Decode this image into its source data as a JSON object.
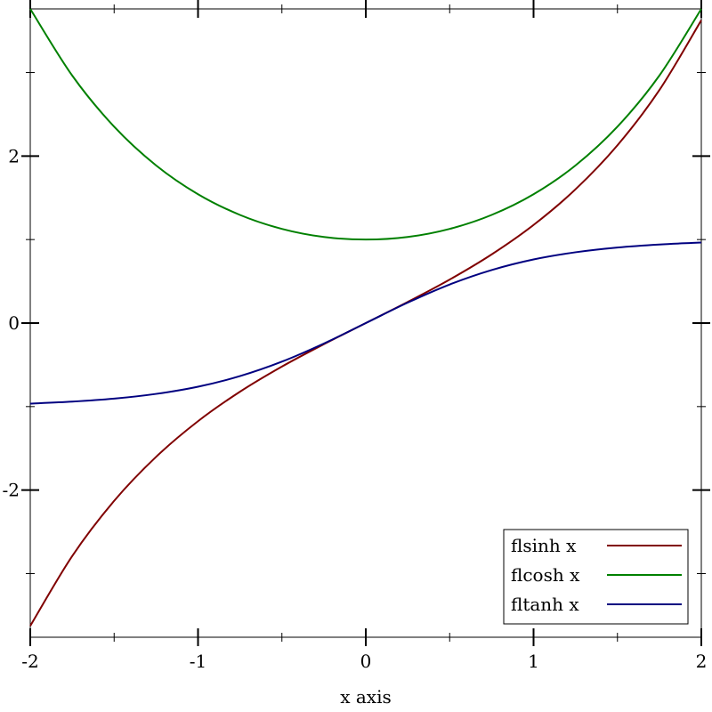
{
  "chart_data": {
    "type": "line",
    "title": "",
    "xlabel": "x axis",
    "ylabel": "",
    "xlim": [
      -2,
      2
    ],
    "ylim": [
      -3.7622,
      3.7622
    ],
    "x_major_ticks": [
      -2,
      -1,
      0,
      1,
      2
    ],
    "x_minor_ticks": [
      -1.5,
      -0.5,
      0.5,
      1.5
    ],
    "y_major_ticks": [
      -2,
      0,
      2
    ],
    "y_minor_ticks": [
      -3,
      -1,
      1,
      3
    ],
    "x_tick_labels": [
      "-2",
      "-1",
      "0",
      "1",
      "2"
    ],
    "y_tick_labels": [
      "-2",
      "0",
      "2"
    ],
    "grid": false,
    "legend_position": "bottom-right",
    "series": [
      {
        "name": "flsinh x",
        "color": "#800000",
        "x": [
          -2.0,
          -1.75,
          -1.5,
          -1.25,
          -1.0,
          -0.75,
          -0.5,
          -0.25,
          0.0,
          0.25,
          0.5,
          0.75,
          1.0,
          1.25,
          1.5,
          1.75,
          2.0
        ],
        "y": [
          -3.627,
          -2.79,
          -2.129,
          -1.602,
          -1.175,
          -0.822,
          -0.521,
          -0.253,
          0.0,
          0.253,
          0.521,
          0.822,
          1.175,
          1.602,
          2.129,
          2.79,
          3.627
        ]
      },
      {
        "name": "flcosh x",
        "color": "#008000",
        "x": [
          -2.0,
          -1.75,
          -1.5,
          -1.25,
          -1.0,
          -0.75,
          -0.5,
          -0.25,
          0.0,
          0.25,
          0.5,
          0.75,
          1.0,
          1.25,
          1.5,
          1.75,
          2.0
        ],
        "y": [
          3.762,
          2.964,
          2.352,
          1.888,
          1.543,
          1.295,
          1.128,
          1.031,
          1.0,
          1.031,
          1.128,
          1.295,
          1.543,
          1.888,
          2.352,
          2.964,
          3.762
        ]
      },
      {
        "name": "fltanh x",
        "color": "#000080",
        "x": [
          -2.0,
          -1.75,
          -1.5,
          -1.25,
          -1.0,
          -0.75,
          -0.5,
          -0.25,
          0.0,
          0.25,
          0.5,
          0.75,
          1.0,
          1.25,
          1.5,
          1.75,
          2.0
        ],
        "y": [
          -0.964,
          -0.941,
          -0.905,
          -0.848,
          -0.762,
          -0.635,
          -0.462,
          -0.245,
          0.0,
          0.245,
          0.462,
          0.635,
          0.762,
          0.848,
          0.905,
          0.941,
          0.964
        ]
      }
    ]
  }
}
